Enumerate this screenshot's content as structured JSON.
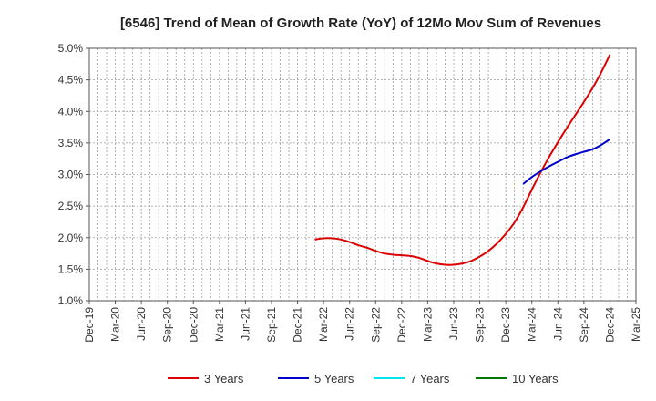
{
  "chart_data": {
    "type": "line",
    "title": "[6546]  Trend of Mean of Growth Rate (YoY) of 12Mo Mov Sum of Revenues",
    "xlabel": "",
    "ylabel": "",
    "x_ticks": [
      "Dec-19",
      "Mar-20",
      "Jun-20",
      "Sep-20",
      "Dec-20",
      "Mar-21",
      "Jun-21",
      "Sep-21",
      "Dec-21",
      "Mar-22",
      "Jun-22",
      "Sep-22",
      "Dec-22",
      "Mar-23",
      "Jun-23",
      "Sep-23",
      "Dec-23",
      "Mar-24",
      "Jun-24",
      "Sep-24",
      "Dec-24",
      "Mar-25"
    ],
    "y_ticks": [
      "1.0%",
      "1.5%",
      "2.0%",
      "2.5%",
      "3.0%",
      "3.5%",
      "4.0%",
      "4.5%",
      "5.0%"
    ],
    "ylim": [
      1.0,
      5.0
    ],
    "y_unit": "%",
    "grid": true,
    "legend_position": "bottom",
    "series": [
      {
        "name": "3 Years",
        "color": "#dd0000",
        "x": [
          "Feb-22",
          "Mar-22",
          "Apr-22",
          "May-22",
          "Jun-22",
          "Jul-22",
          "Aug-22",
          "Sep-22",
          "Oct-22",
          "Nov-22",
          "Dec-22",
          "Jan-23",
          "Feb-23",
          "Mar-23",
          "Apr-23",
          "May-23",
          "Jun-23",
          "Jul-23",
          "Aug-23",
          "Sep-23",
          "Oct-23",
          "Nov-23",
          "Dec-23",
          "Jan-24",
          "Feb-24",
          "Mar-24",
          "Apr-24",
          "May-24",
          "Jun-24",
          "Jul-24",
          "Aug-24",
          "Sep-24",
          "Oct-24",
          "Nov-24",
          "Dec-24"
        ],
        "values": [
          1.97,
          1.99,
          1.99,
          1.97,
          1.93,
          1.88,
          1.84,
          1.79,
          1.75,
          1.73,
          1.72,
          1.71,
          1.68,
          1.63,
          1.59,
          1.57,
          1.57,
          1.59,
          1.63,
          1.7,
          1.79,
          1.91,
          2.06,
          2.24,
          2.48,
          2.76,
          3.03,
          3.28,
          3.51,
          3.73,
          3.94,
          4.15,
          4.37,
          4.62,
          4.9
        ]
      },
      {
        "name": "5 Years",
        "color": "#0000cc",
        "x": [
          "Feb-24",
          "Mar-24",
          "Apr-24",
          "May-24",
          "Jun-24",
          "Jul-24",
          "Aug-24",
          "Sep-24",
          "Oct-24",
          "Nov-24",
          "Dec-24"
        ],
        "values": [
          2.85,
          2.96,
          3.05,
          3.13,
          3.2,
          3.27,
          3.32,
          3.36,
          3.4,
          3.47,
          3.56
        ]
      },
      {
        "name": "7 Years",
        "color": "#00e5ee",
        "x": [],
        "values": []
      },
      {
        "name": "10 Years",
        "color": "#007700",
        "x": [],
        "values": []
      }
    ]
  }
}
